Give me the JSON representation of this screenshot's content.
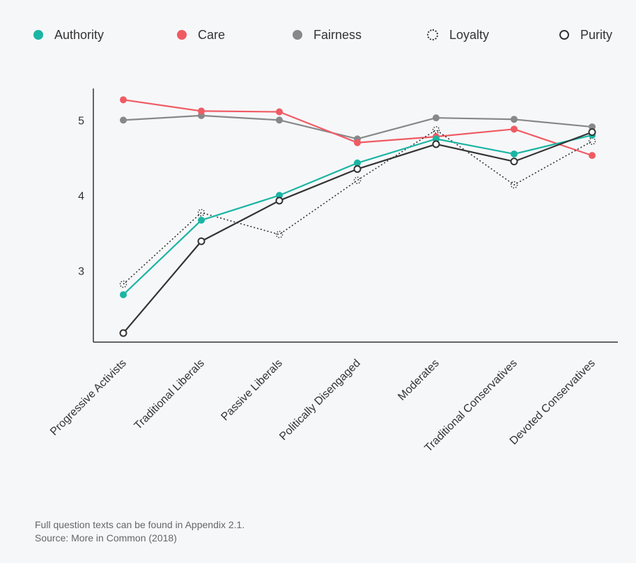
{
  "chart_data": {
    "type": "line",
    "title": "",
    "xlabel": "",
    "ylabel": "",
    "ylim": [
      2.05,
      5.42
    ],
    "yticks": [
      3,
      4,
      5
    ],
    "legend_position": "top",
    "grid": false,
    "categories": [
      "Progressive Activists",
      "Traditional Liberals",
      "Passive Liberals",
      "Politically Disengaged",
      "Moderates",
      "Traditional Conservatives",
      "Devoted Conservatives"
    ],
    "series": [
      {
        "name": "Authority",
        "color": "#1ab5a3",
        "style": "solid-filled",
        "values": [
          2.68,
          3.67,
          4.0,
          4.43,
          4.75,
          4.55,
          4.8
        ]
      },
      {
        "name": "Care",
        "color": "#ef5b63",
        "style": "solid-filled",
        "values": [
          5.27,
          5.12,
          5.11,
          4.7,
          4.78,
          4.88,
          4.53
        ]
      },
      {
        "name": "Fairness",
        "color": "#888888",
        "style": "solid-filled",
        "values": [
          5.0,
          5.06,
          5.0,
          4.75,
          5.03,
          5.01,
          4.91
        ]
      },
      {
        "name": "Loyalty",
        "color": "#333333",
        "style": "dotted",
        "values": [
          2.82,
          3.77,
          3.48,
          4.2,
          4.87,
          4.14,
          4.72
        ]
      },
      {
        "name": "Purity",
        "color": "#333333",
        "style": "solid-hollow",
        "values": [
          2.17,
          3.39,
          3.93,
          4.35,
          4.68,
          4.45,
          4.84
        ]
      }
    ]
  },
  "footnote": {
    "line1": "Full question texts can be found in Appendix 2.1.",
    "line2": "Source: More in Common (2018)"
  }
}
